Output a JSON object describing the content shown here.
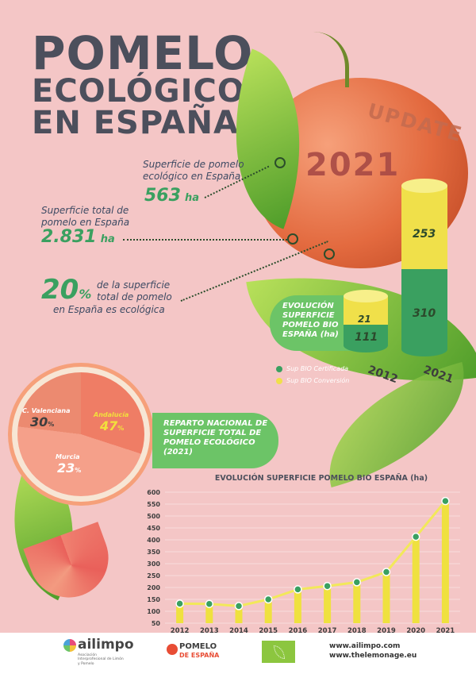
{
  "title": {
    "line1": "POMELO",
    "line2": "ECOLÓGICO",
    "line3": "EN ESPAÑA"
  },
  "badge": {
    "update": "UPDATE",
    "year": "2021"
  },
  "stats": {
    "eco_label": "Superficie de pomelo ecológico en España",
    "eco_value": "563",
    "eco_unit": "ha",
    "total_label": "Superficie total de pomelo en España",
    "total_value": "2.831",
    "total_unit": "ha",
    "pct_value": "20",
    "pct_sign": "%",
    "pct_label_1": "de la superficie",
    "pct_label_2": "total de pomelo",
    "pct_label_3": "en España es ecológica"
  },
  "cylinders": {
    "title": "EVOLUCIÓN SUPERFICIE POMELO BIO ESPAÑA (ha)",
    "legend_certified": "Sup BIO Certificada",
    "legend_conversion": "Sup BIO Conversión",
    "colors": {
      "certified": "#3aa060",
      "conversion": "#f0e04a"
    },
    "years": [
      {
        "year": "2012",
        "certified": "111",
        "conversion": "21"
      },
      {
        "year": "2021",
        "certified": "310",
        "conversion": "253"
      }
    ]
  },
  "distribution": {
    "title": "REPARTO NACIONAL DE SUPERFICIE TOTAL DE POMELO ECOLÓGICO (2021)",
    "regions": [
      {
        "name": "C. Valenciana",
        "value": "30",
        "sign": "%"
      },
      {
        "name": "Andalucía",
        "value": "47",
        "sign": "%"
      },
      {
        "name": "Murcia",
        "value": "23",
        "sign": "%"
      }
    ]
  },
  "chart_data": {
    "type": "bar",
    "title": "EVOLUCIÓN SUPERFICIE POMELO BIO ESPAÑA (ha)",
    "categories": [
      "2012",
      "2013",
      "2014",
      "2015",
      "2016",
      "2017",
      "2018",
      "2019",
      "2020",
      "2021"
    ],
    "values": [
      132,
      131,
      122,
      150,
      192,
      206,
      222,
      265,
      413,
      563
    ],
    "yticks": [
      50,
      100,
      150,
      200,
      250,
      300,
      350,
      400,
      450,
      500,
      550,
      600
    ],
    "ylim": [
      50,
      600
    ],
    "grid": true,
    "colors": {
      "bar": "#efe13f",
      "line": "#f2e85a",
      "point": "#3aa060"
    }
  },
  "footer": {
    "ailimpo": "ailimpo",
    "ailimpo_sub": "Asociación Interprofesional de Limón y Pomelo",
    "pomelo_brand_1": "POMELO",
    "pomelo_brand_2": "DE ESPAÑA",
    "web1": "www.ailimpo.com",
    "web2": "www.thelemonage.eu"
  }
}
